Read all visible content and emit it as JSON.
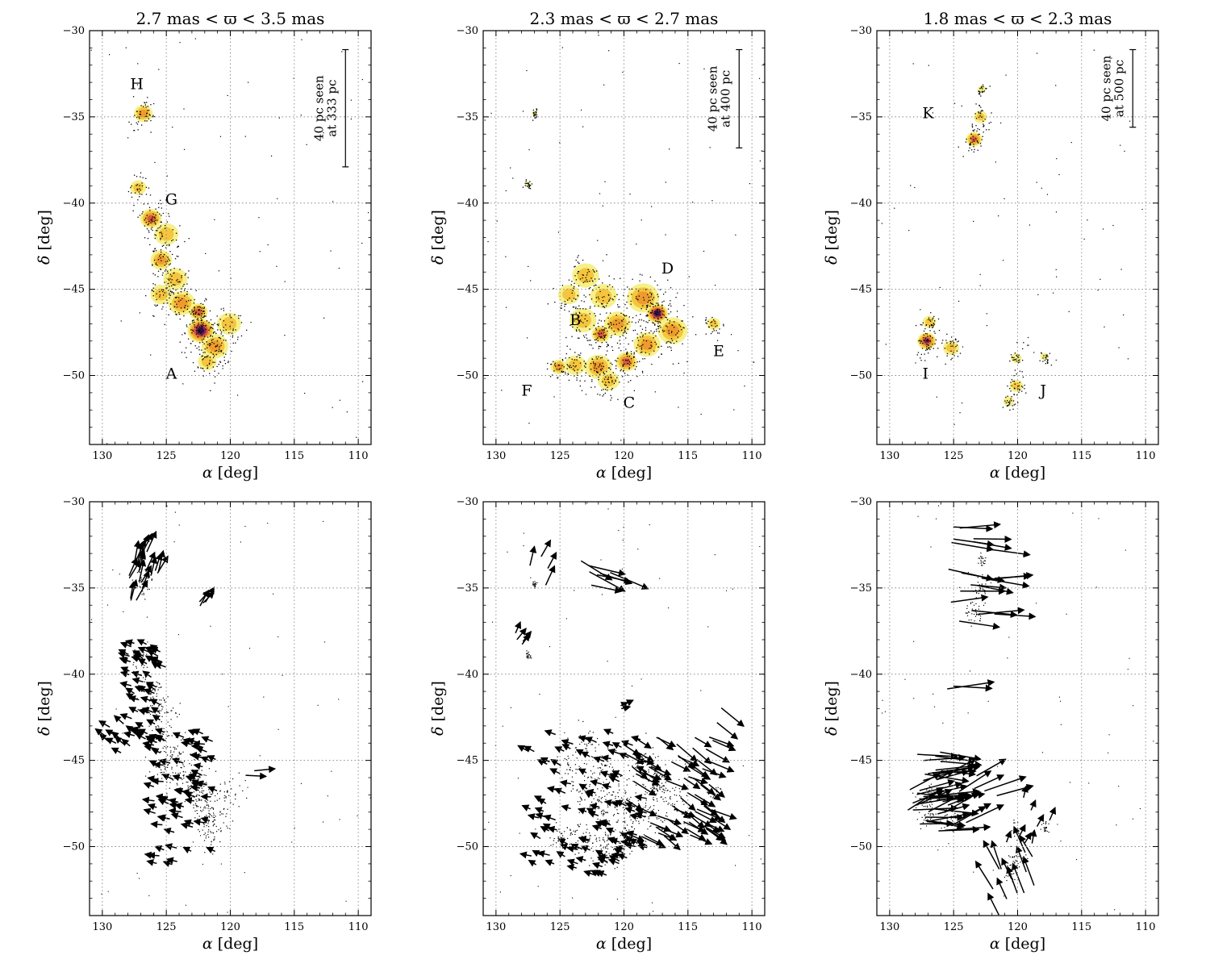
{
  "chart_data": {
    "type": "scatter",
    "layout": "2x3 grid; top row density maps with labeled groups, bottom row proper-motion vector maps",
    "x_axis": {
      "label_symbol": "α",
      "label_unit": "[deg]",
      "range": [
        131,
        109
      ],
      "ticks": [
        130,
        125,
        120,
        115,
        110
      ]
    },
    "y_axis": {
      "label_symbol": "δ",
      "label_unit": "[deg]",
      "range": [
        -54,
        -30
      ],
      "ticks": [
        -30,
        -35,
        -40,
        -45,
        -50
      ]
    },
    "colormap": [
      "#f6f089",
      "#f5c53e",
      "#ee9b2e",
      "#d45a3e",
      "#7a2a55",
      "#2c0f45"
    ],
    "panels": [
      {
        "title": "2.7 mas < ϖ < 3.5 mas",
        "parallax_range_mas": [
          2.7,
          3.5
        ],
        "scale_bar": {
          "line1": "40 pc seen",
          "line2": "at 333 pc",
          "delta_from": -31.1,
          "delta_to": -37.9,
          "alpha": 111.0
        },
        "labels": [
          {
            "text": "H",
            "alpha": 127.3,
            "delta": -33.1
          },
          {
            "text": "G",
            "alpha": 124.6,
            "delta": -39.8
          },
          {
            "text": "A",
            "alpha": 124.6,
            "delta": -49.9
          }
        ],
        "clumps": [
          {
            "alpha": 126.8,
            "delta": -34.8,
            "peak": 0.55,
            "size": 0.7
          },
          {
            "alpha": 127.2,
            "delta": -39.1,
            "peak": 0.25,
            "size": 0.6
          },
          {
            "alpha": 126.2,
            "delta": -40.9,
            "peak": 0.62,
            "size": 0.8
          },
          {
            "alpha": 125.0,
            "delta": -41.8,
            "peak": 0.3,
            "size": 0.9
          },
          {
            "alpha": 125.4,
            "delta": -43.3,
            "peak": 0.45,
            "size": 0.8
          },
          {
            "alpha": 124.3,
            "delta": -44.4,
            "peak": 0.35,
            "size": 0.9
          },
          {
            "alpha": 125.4,
            "delta": -45.3,
            "peak": 0.25,
            "size": 0.8
          },
          {
            "alpha": 123.8,
            "delta": -45.8,
            "peak": 0.45,
            "size": 1.0
          },
          {
            "alpha": 122.5,
            "delta": -46.3,
            "peak": 0.6,
            "size": 0.7
          },
          {
            "alpha": 122.3,
            "delta": -47.4,
            "peak": 1.0,
            "size": 1.0
          },
          {
            "alpha": 121.2,
            "delta": -48.3,
            "peak": 0.45,
            "size": 1.0
          },
          {
            "alpha": 120.1,
            "delta": -47.0,
            "peak": 0.3,
            "size": 0.9
          },
          {
            "alpha": 121.8,
            "delta": -49.2,
            "peak": 0.3,
            "size": 0.7
          }
        ],
        "vector_groups": [
          {
            "alpha": [
              125.6,
              128.0
            ],
            "delta": [
              -35.9,
              -32.6
            ],
            "direction_deg": 70,
            "length_deg": 1.6,
            "n": 22
          },
          {
            "alpha": [
              121.8,
              122.6
            ],
            "delta": [
              -36.8,
              -35.3
            ],
            "direction_deg": 55,
            "length_deg": 1.2,
            "n": 4
          },
          {
            "alpha": [
              125.0,
              128.0
            ],
            "delta": [
              -43.9,
              -38.2
            ],
            "direction_deg": 155,
            "length_deg": 0.8,
            "n": 60
          },
          {
            "alpha": [
              127.7,
              130.0
            ],
            "delta": [
              -44.6,
              -42.6
            ],
            "direction_deg": 145,
            "length_deg": 0.9,
            "n": 10
          },
          {
            "alpha": [
              121.0,
              126.0
            ],
            "delta": [
              -51.1,
              -43.4
            ],
            "direction_deg": 165,
            "length_deg": 0.8,
            "n": 70
          },
          {
            "alpha": [
              117.4,
              119.3
            ],
            "delta": [
              -46.9,
              -45.6
            ],
            "direction_deg": 5,
            "length_deg": 1.8,
            "n": 2
          }
        ]
      },
      {
        "title": "2.3 mas < ϖ < 2.7 mas",
        "parallax_range_mas": [
          2.3,
          2.7
        ],
        "scale_bar": {
          "line1": "40 pc seen",
          "line2": "at 400 pc",
          "delta_from": -31.1,
          "delta_to": -36.8,
          "alpha": 111.0
        },
        "labels": [
          {
            "text": "D",
            "alpha": 116.6,
            "delta": -43.8
          },
          {
            "text": "B",
            "alpha": 123.8,
            "delta": -46.8
          },
          {
            "text": "E",
            "alpha": 112.6,
            "delta": -48.6
          },
          {
            "text": "F",
            "alpha": 127.6,
            "delta": -50.9
          },
          {
            "text": "C",
            "alpha": 119.6,
            "delta": -51.6
          }
        ],
        "clumps": [
          {
            "alpha": 127.0,
            "delta": -34.8,
            "peak": 0.15,
            "size": 0.2
          },
          {
            "alpha": 127.5,
            "delta": -38.9,
            "peak": 0.15,
            "size": 0.2
          },
          {
            "alpha": 123.0,
            "delta": -44.2,
            "peak": 0.3,
            "size": 1.0
          },
          {
            "alpha": 124.3,
            "delta": -45.3,
            "peak": 0.25,
            "size": 0.8
          },
          {
            "alpha": 121.6,
            "delta": -45.4,
            "peak": 0.4,
            "size": 1.0
          },
          {
            "alpha": 123.2,
            "delta": -46.8,
            "peak": 0.4,
            "size": 1.0
          },
          {
            "alpha": 121.8,
            "delta": -47.6,
            "peak": 0.65,
            "size": 0.7
          },
          {
            "alpha": 120.5,
            "delta": -47.0,
            "peak": 0.45,
            "size": 1.0
          },
          {
            "alpha": 118.5,
            "delta": -45.5,
            "peak": 0.45,
            "size": 1.2
          },
          {
            "alpha": 117.4,
            "delta": -46.4,
            "peak": 1.0,
            "size": 0.8
          },
          {
            "alpha": 116.2,
            "delta": -47.4,
            "peak": 0.45,
            "size": 1.1
          },
          {
            "alpha": 118.2,
            "delta": -48.2,
            "peak": 0.45,
            "size": 1.0
          },
          {
            "alpha": 119.8,
            "delta": -49.2,
            "peak": 0.65,
            "size": 0.8
          },
          {
            "alpha": 122.0,
            "delta": -49.5,
            "peak": 0.45,
            "size": 1.0
          },
          {
            "alpha": 123.8,
            "delta": -49.4,
            "peak": 0.4,
            "size": 0.8
          },
          {
            "alpha": 125.1,
            "delta": -49.5,
            "peak": 0.45,
            "size": 0.6
          },
          {
            "alpha": 121.2,
            "delta": -50.3,
            "peak": 0.35,
            "size": 0.8
          },
          {
            "alpha": 113.0,
            "delta": -47.0,
            "peak": 0.25,
            "size": 0.5
          }
        ],
        "vector_groups": [
          {
            "alpha": [
              125.8,
              127.5
            ],
            "delta": [
              -35.0,
              -32.9
            ],
            "direction_deg": 70,
            "length_deg": 1.6,
            "n": 4
          },
          {
            "alpha": [
              127.7,
              129.5
            ],
            "delta": [
              -39.4,
              -37.6
            ],
            "direction_deg": 55,
            "length_deg": 1.0,
            "n": 4
          },
          {
            "alpha": [
              120.0,
              123.5
            ],
            "delta": [
              -35.5,
              -32.9
            ],
            "direction_deg": -20,
            "length_deg": 2.8,
            "n": 7
          },
          {
            "alpha": [
              119.0,
              120.3
            ],
            "delta": [
              -42.3,
              -41.6
            ],
            "direction_deg": 20,
            "length_deg": 0.6,
            "n": 3
          },
          {
            "alpha": [
              110.5,
              112.9
            ],
            "delta": [
              -43.0,
              -41.7
            ],
            "direction_deg": -30,
            "length_deg": 2.0,
            "n": 2
          },
          {
            "alpha": [
              118.0,
              127.5
            ],
            "delta": [
              -51.7,
              -43.4
            ],
            "direction_deg": 160,
            "length_deg": 0.8,
            "n": 110
          },
          {
            "alpha": [
              113.0,
              120.2
            ],
            "delta": [
              -49.5,
              -43.6
            ],
            "direction_deg": -30,
            "length_deg": 1.8,
            "n": 70
          }
        ]
      },
      {
        "title": "1.8 mas < ϖ < 2.3 mas",
        "parallax_range_mas": [
          1.8,
          2.3
        ],
        "scale_bar": {
          "line1": "40 pc seen",
          "line2": "at 500 pc",
          "delta_from": -31.1,
          "delta_to": -35.6,
          "alpha": 111.0
        },
        "labels": [
          {
            "text": "K",
            "alpha": 127.0,
            "delta": -34.8
          },
          {
            "text": "I",
            "alpha": 127.2,
            "delta": -49.9
          },
          {
            "text": "J",
            "alpha": 118.0,
            "delta": -50.9
          }
        ],
        "clumps": [
          {
            "alpha": 122.8,
            "delta": -33.4,
            "peak": 0.15,
            "size": 0.3
          },
          {
            "alpha": 122.9,
            "delta": -35.0,
            "peak": 0.25,
            "size": 0.5
          },
          {
            "alpha": 123.4,
            "delta": -36.3,
            "peak": 0.6,
            "size": 0.6
          },
          {
            "alpha": 126.9,
            "delta": -46.9,
            "peak": 0.25,
            "size": 0.5
          },
          {
            "alpha": 127.1,
            "delta": -48.0,
            "peak": 0.75,
            "size": 0.7
          },
          {
            "alpha": 125.2,
            "delta": -48.4,
            "peak": 0.3,
            "size": 0.6
          },
          {
            "alpha": 120.1,
            "delta": -49.0,
            "peak": 0.2,
            "size": 0.4
          },
          {
            "alpha": 117.9,
            "delta": -48.9,
            "peak": 0.15,
            "size": 0.3
          },
          {
            "alpha": 120.1,
            "delta": -50.6,
            "peak": 0.3,
            "size": 0.5
          },
          {
            "alpha": 120.7,
            "delta": -51.5,
            "peak": 0.2,
            "size": 0.4
          }
        ],
        "vector_groups": [
          {
            "alpha": [
              121.5,
              125.5
            ],
            "delta": [
              -37.2,
              -31.4
            ],
            "direction_deg": -3,
            "length_deg": 3.4,
            "n": 20
          },
          {
            "alpha": [
              125.0,
              127.6
            ],
            "delta": [
              -41.3,
              -40.3
            ],
            "direction_deg": -3,
            "length_deg": 3.6,
            "n": 2
          },
          {
            "alpha": [
              125.6,
              128.2
            ],
            "delta": [
              -49.2,
              -43.9
            ],
            "direction_deg": 2,
            "length_deg": 3.2,
            "n": 30
          },
          {
            "alpha": [
              121.5,
              128.7
            ],
            "delta": [
              -49.0,
              -45.5
            ],
            "direction_deg": 25,
            "length_deg": 3.0,
            "n": 20
          },
          {
            "alpha": [
              117.0,
              121.5
            ],
            "delta": [
              -50.0,
              -45.9
            ],
            "direction_deg": 70,
            "length_deg": 1.0,
            "n": 8
          },
          {
            "alpha": [
              118.5,
              122.3
            ],
            "delta": [
              -54.0,
              -50.2
            ],
            "direction_deg": 110,
            "length_deg": 2.2,
            "n": 12
          }
        ]
      }
    ]
  }
}
